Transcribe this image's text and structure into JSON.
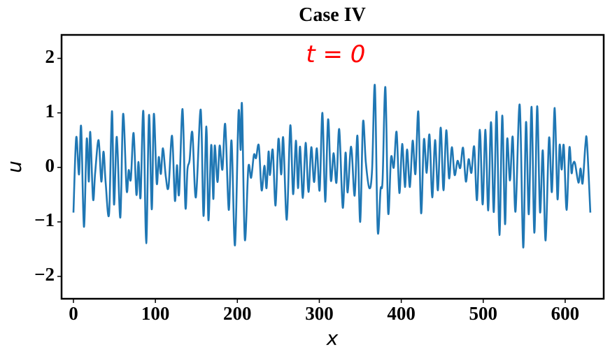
{
  "chart_data": {
    "type": "line",
    "title": "Case IV",
    "xlabel": "x",
    "ylabel": "u",
    "annotation": {
      "text": "t = 0",
      "x": 320,
      "y": 2.05,
      "color": "#ff0000"
    },
    "xlim": [
      -14.5,
      647
    ],
    "ylim": [
      -2.41,
      2.43
    ],
    "xticks": [
      0,
      100,
      200,
      300,
      400,
      500,
      600
    ],
    "yticks": [
      {
        "value": -2,
        "label": "−2"
      },
      {
        "value": -1,
        "label": "−1"
      },
      0,
      1,
      2
    ],
    "series": [
      {
        "name": "u",
        "color": "#1f77b4",
        "x": [
          0,
          3.4,
          6.8,
          9.4,
          12.8,
          16.2,
          18.8,
          20.5,
          23.9,
          26.5,
          30.7,
          34,
          36.7,
          39.3,
          43.5,
          47,
          49.5,
          52.9,
          57.2,
          60.6,
          64.9,
          67.4,
          70,
          73.4,
          76.8,
          79.4,
          81.9,
          85.3,
          88.8,
          92.2,
          95.6,
          98.1,
          101.6,
          104.1,
          106.7,
          109.2,
          112.7,
          116,
          120.3,
          123.8,
          126.3,
          128.9,
          133.1,
          136.6,
          139.1,
          141.7,
          145.1,
          149.4,
          155.3,
          158.7,
          162.2,
          164.7,
          168.1,
          170.7,
          172.4,
          175.8,
          178.4,
          181.8,
          185.2,
          189.5,
          192.9,
          197.1,
          201.4,
          204,
          205.7,
          209.1,
          213.4,
          216.8,
          220.2,
          222.8,
          226.2,
          229.6,
          233,
          235.6,
          238.1,
          239.8,
          243.2,
          246.6,
          250.1,
          253.5,
          256,
          260.3,
          264.6,
          268,
          271.4,
          274,
          276.5,
          279.9,
          283.3,
          286.8,
          290.2,
          293.6,
          297,
          300.4,
          303.8,
          307.2,
          310.7,
          314.1,
          317.5,
          320.9,
          324.3,
          328.6,
          332,
          334.6,
          338.8,
          343.1,
          346.5,
          349.9,
          353.3,
          356.7,
          361,
          364.4,
          367.8,
          371.2,
          374.7,
          377.2,
          380.6,
          384,
          387.5,
          390.9,
          394.3,
          397.7,
          401.1,
          404.5,
          407.1,
          410.5,
          413.9,
          417.3,
          420.8,
          424.2,
          427.6,
          431,
          434.4,
          437.8,
          441.2,
          444.7,
          448.1,
          451.5,
          454.9,
          458.3,
          461.7,
          465.1,
          468.6,
          472,
          475.4,
          478.8,
          482.2,
          485.6,
          489,
          492.4,
          495.9,
          499.3,
          502.7,
          506.1,
          509.5,
          512.9,
          516.3,
          519.8,
          523.2,
          526.6,
          529.2,
          532.6,
          536,
          539.4,
          544.5,
          548.8,
          552.2,
          555.6,
          559,
          562.4,
          565.8,
          569.3,
          572.7,
          576.1,
          580.3,
          583.8,
          587.2,
          590.6,
          593.2,
          595.7,
          598.3,
          601.7,
          605.1,
          607.7,
          609.4,
          611.9,
          616.2,
          618.8,
          621.3,
          624.7,
          626.6,
          630.7
        ],
        "values": [
          -0.83,
          0.55,
          -0.13,
          0.75,
          -1.09,
          0.52,
          -0.26,
          0.65,
          -0.58,
          -0.1,
          0.5,
          -0.26,
          0.29,
          -0.28,
          -0.85,
          1.03,
          -0.68,
          0.56,
          -0.92,
          0.98,
          -0.42,
          -0.05,
          -0.22,
          0.63,
          -0.5,
          0.1,
          -0.55,
          1.03,
          -1.39,
          0.96,
          -0.77,
          0.98,
          -0.29,
          0.19,
          -0.12,
          0.35,
          -0.17,
          -0.36,
          0.58,
          -0.61,
          0.04,
          -0.49,
          1.07,
          -0.73,
          -0.04,
          0.13,
          0.64,
          -0.55,
          1.06,
          -0.89,
          0.75,
          -0.97,
          0.41,
          -0.58,
          0.4,
          -0.27,
          0.4,
          -0.04,
          0.79,
          -0.78,
          0.49,
          -1.43,
          1.0,
          0.32,
          1.14,
          -1.32,
          0,
          -0.19,
          0.23,
          0.17,
          0.4,
          -0.42,
          0.03,
          -0.38,
          0.29,
          -0.14,
          0.32,
          -0.7,
          0.52,
          -0.13,
          0.54,
          -0.96,
          0.77,
          -0.49,
          0.49,
          -0.38,
          0.38,
          -0.56,
          0.45,
          -0.45,
          0.37,
          -0.27,
          0.35,
          -0.42,
          1.0,
          -0.63,
          0.88,
          -0.24,
          0.26,
          -0.28,
          0.7,
          -0.74,
          0.27,
          -0.46,
          0.38,
          -0.52,
          0.58,
          -1.0,
          0.83,
          0.1,
          -0.38,
          -0.04,
          1.5,
          -1.15,
          -0.41,
          -0.23,
          1.47,
          -0.83,
          0.18,
          0,
          0.65,
          -0.47,
          0.43,
          -0.36,
          0.33,
          -0.36,
          0.49,
          -0.12,
          1.02,
          -0.84,
          0.51,
          -0.1,
          0.6,
          -0.55,
          0.5,
          -0.42,
          0.73,
          -0.42,
          0.68,
          -0.2,
          0.37,
          -0.14,
          0.12,
          -0.01,
          0.36,
          -0.26,
          0.15,
          -0.1,
          0.38,
          -0.6,
          0.69,
          -0.68,
          0.69,
          -0.79,
          0.83,
          -0.82,
          1.02,
          -1.24,
          0.95,
          -1.04,
          0.52,
          -0.24,
          0.56,
          -0.81,
          1.15,
          -1.47,
          0.83,
          -0.86,
          1.11,
          -1.2,
          1.12,
          -0.82,
          0.31,
          -1.34,
          0.54,
          -0.45,
          1.09,
          -0.58,
          0.41,
          -0.04,
          0.4,
          -0.78,
          0.36,
          -0.1,
          0.05,
          0.08,
          -0.28,
          -0.02,
          -0.29,
          0.42,
          0.46,
          -0.83
        ]
      }
    ]
  }
}
